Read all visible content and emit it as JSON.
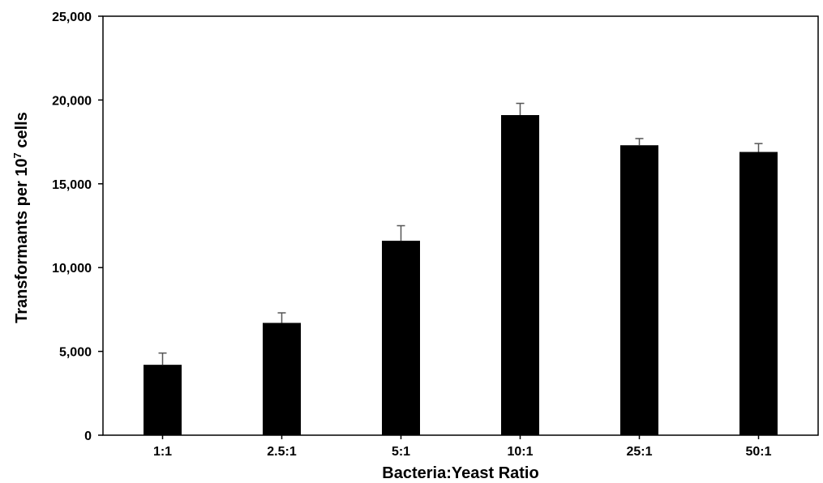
{
  "chart_data": {
    "type": "bar",
    "title": "",
    "xlabel": "Bacteria:Yeast Ratio",
    "ylabel": "Transformants per 10",
    "ylabel_superscript": "7",
    "ylabel_suffix": " cells",
    "categories": [
      "1:1",
      "2.5:1",
      "5:1",
      "10:1",
      "25:1",
      "50:1"
    ],
    "values": [
      4200,
      6700,
      11600,
      19100,
      17300,
      16900
    ],
    "error_plus": [
      700,
      600,
      900,
      700,
      400,
      500
    ],
    "ylim": [
      0,
      25000
    ],
    "yticks": [
      0,
      5000,
      10000,
      15000,
      20000,
      25000
    ],
    "ytick_labels": [
      "0",
      "5,000",
      "10,000",
      "15,000",
      "20,000",
      "25,000"
    ],
    "bar_color": "#000000",
    "error_color": "#555555",
    "grid": false,
    "legend": "none"
  }
}
